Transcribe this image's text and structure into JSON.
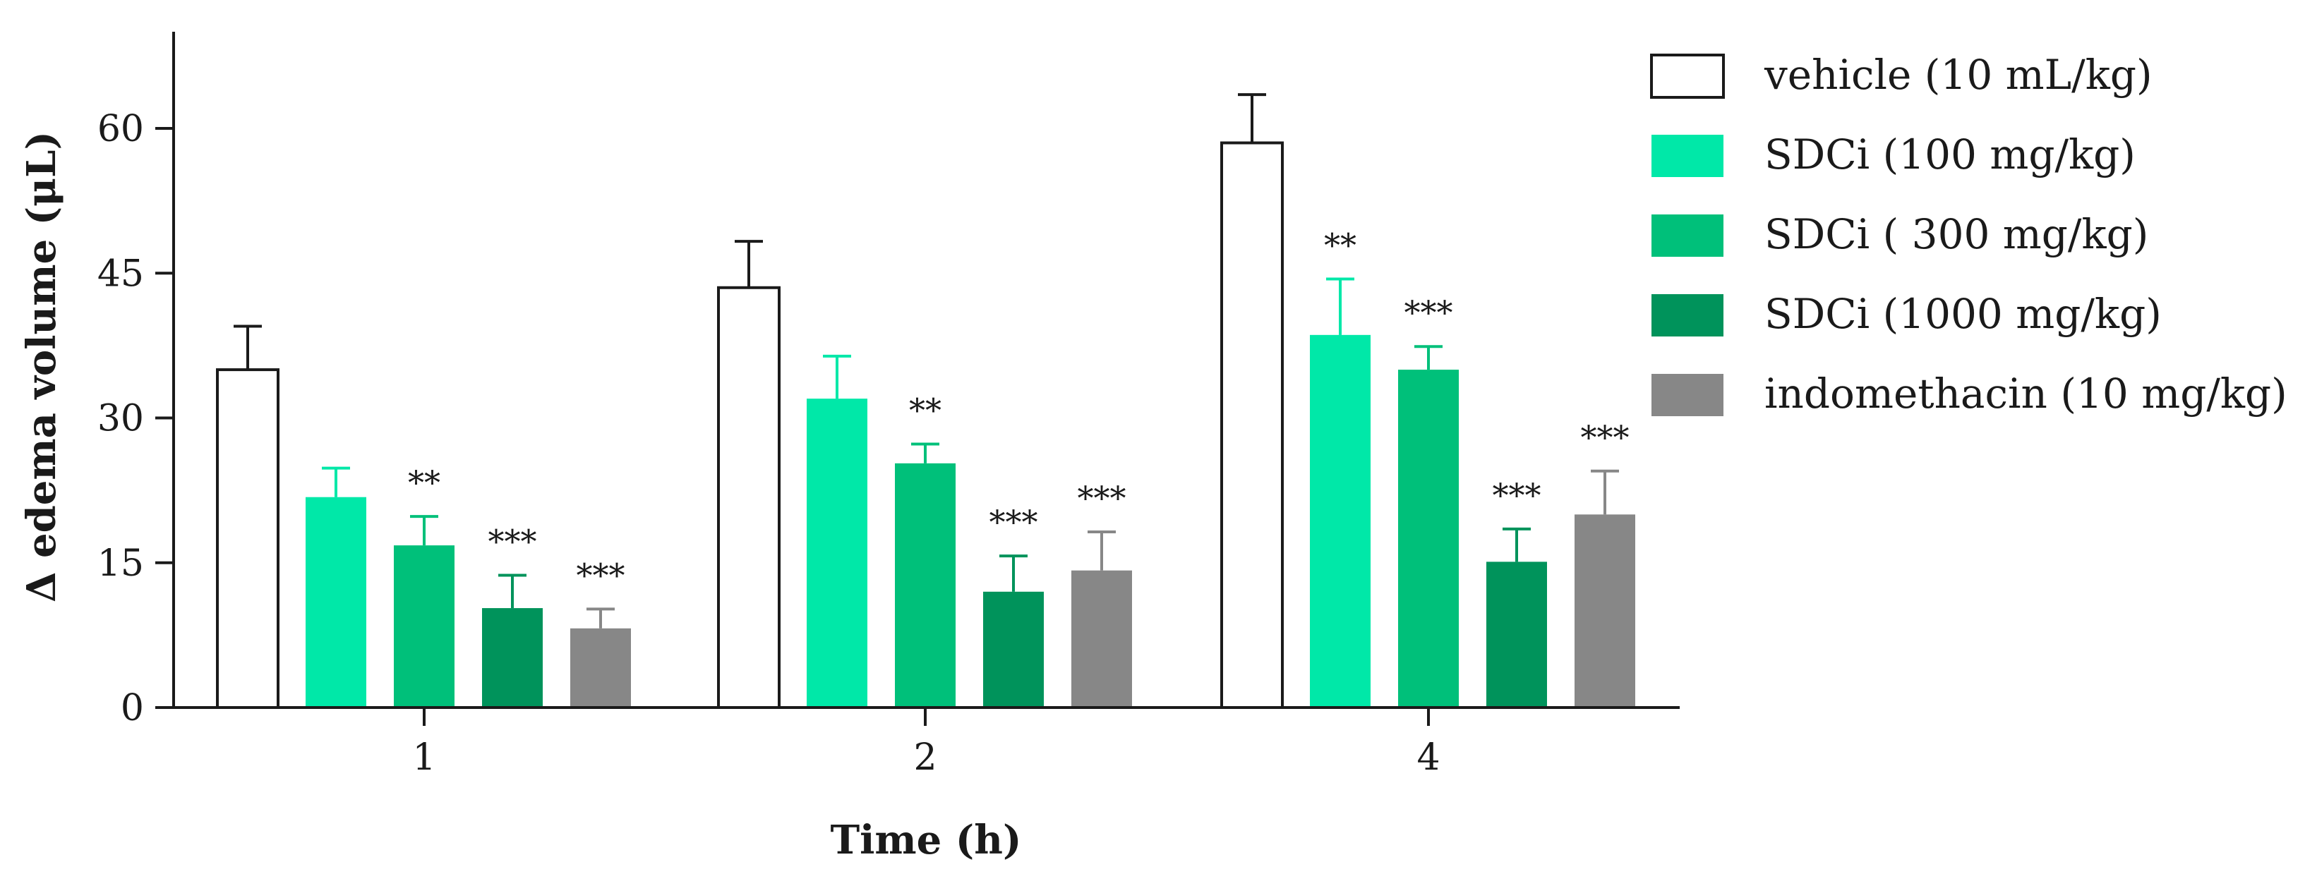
{
  "chart_data": {
    "type": "bar",
    "title": "",
    "xlabel": "Time (h)",
    "ylabel": "Δ edema volume (μL)",
    "ylim": [
      0,
      70
    ],
    "yticks": [
      0,
      15,
      30,
      45,
      60
    ],
    "categories": [
      "1",
      "2",
      "4"
    ],
    "grid": false,
    "legend_position": "top-right",
    "series": [
      {
        "name": "vehicle (10 mL/kg)",
        "color": "#ffffff",
        "values": [
          35,
          43.5,
          58.5
        ],
        "errors": [
          4.5,
          4.8,
          5
        ],
        "significance": [
          "",
          "",
          ""
        ]
      },
      {
        "name": "SDCi (100 mg/kg)",
        "color": "#00e8a8",
        "values": [
          21.8,
          32,
          38.6
        ],
        "errors": [
          3,
          4.4,
          5.8
        ],
        "significance": [
          "",
          "",
          "**"
        ]
      },
      {
        "name": "SDCi ( 300 mg/kg)",
        "color": "#00c07a",
        "values": [
          16.8,
          25.3,
          35
        ],
        "errors": [
          3,
          2,
          2.4
        ],
        "significance": [
          "**",
          "**",
          "***"
        ]
      },
      {
        "name": "SDCi (1000 mg/kg)",
        "color": "#00935b",
        "values": [
          10.3,
          12,
          15.1
        ],
        "errors": [
          3.4,
          3.7,
          3.4
        ],
        "significance": [
          "***",
          "***",
          "***"
        ]
      },
      {
        "name": "indomethacin (10 mg/kg)",
        "color": "#878787",
        "values": [
          8.2,
          14.2,
          20
        ],
        "errors": [
          2,
          4,
          4.5
        ],
        "significance": [
          "***",
          "***",
          "***"
        ]
      }
    ]
  }
}
